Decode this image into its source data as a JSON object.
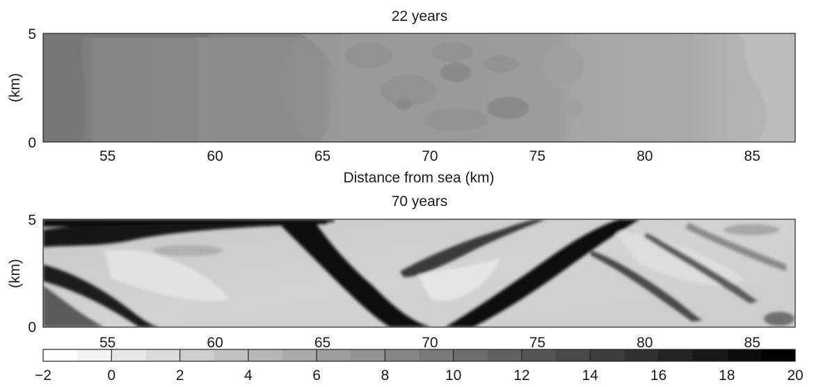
{
  "chart_data": [
    {
      "type": "heatmap",
      "title": "22 years",
      "xlabel": "Distance from sea (km)",
      "ylabel": "(km)",
      "xlim": [
        52,
        87
      ],
      "ylim": [
        0,
        5
      ],
      "xticks": [
        "55",
        "60",
        "65",
        "70",
        "75",
        "80",
        "85"
      ],
      "yticks": [
        "0",
        "5"
      ],
      "description_values": {
        "value_at_x": [
          {
            "x": 52,
            "value": 11.5
          },
          {
            "x": 54,
            "value": 11.5
          },
          {
            "x": 55,
            "value": 10.5
          },
          {
            "x": 59,
            "value": 10.5
          },
          {
            "x": 60,
            "value": 10.0
          },
          {
            "x": 65,
            "value": 9.5
          },
          {
            "x": 66,
            "value": 8.5
          },
          {
            "x": 70,
            "value": 8.5
          },
          {
            "x": 76,
            "value": 8.5
          },
          {
            "x": 77,
            "value": 7.5
          },
          {
            "x": 82,
            "value": 7.0
          },
          {
            "x": 86,
            "value": 6.0
          },
          {
            "x": 87,
            "value": 6.0
          }
        ]
      }
    },
    {
      "type": "heatmap",
      "title": "70 years",
      "xlabel": "",
      "ylabel": "(km)",
      "xlim": [
        52,
        87
      ],
      "ylim": [
        0,
        5
      ],
      "xticks": [
        "55",
        "60",
        "65",
        "70",
        "75",
        "80",
        "85"
      ],
      "yticks": [
        "0",
        "5"
      ],
      "channels": [
        {
          "name": "",
          "from": [
            52,
            4.6
          ],
          "to": [
            65,
            5.0
          ],
          "value": 20
        },
        {
          "name": "",
          "from": [
            52,
            2.3
          ],
          "to": [
            57,
            0.6
          ],
          "value": 18
        },
        {
          "name": "",
          "from": [
            62,
            5.0
          ],
          "to": [
            70,
            0.3
          ],
          "value": 20
        },
        {
          "name": "",
          "from": [
            72,
            0.2
          ],
          "to": [
            80,
            5.0
          ],
          "value": 19
        },
        {
          "name": "",
          "from": [
            70,
            2.7
          ],
          "to": [
            77,
            5.0
          ],
          "value": 14
        },
        {
          "name": "",
          "from": [
            79,
            3.8
          ],
          "to": [
            85,
            0.9
          ],
          "value": 14
        }
      ]
    },
    {
      "type": "colorbar",
      "range": [
        -2,
        20
      ],
      "ticks": [
        "-2",
        "0",
        "2",
        "4",
        "6",
        "8",
        "10",
        "12",
        "14",
        "16",
        "18",
        "20"
      ]
    }
  ],
  "colors": {
    "low": "#ffffff",
    "high": "#000000",
    "frame": "#222222"
  }
}
